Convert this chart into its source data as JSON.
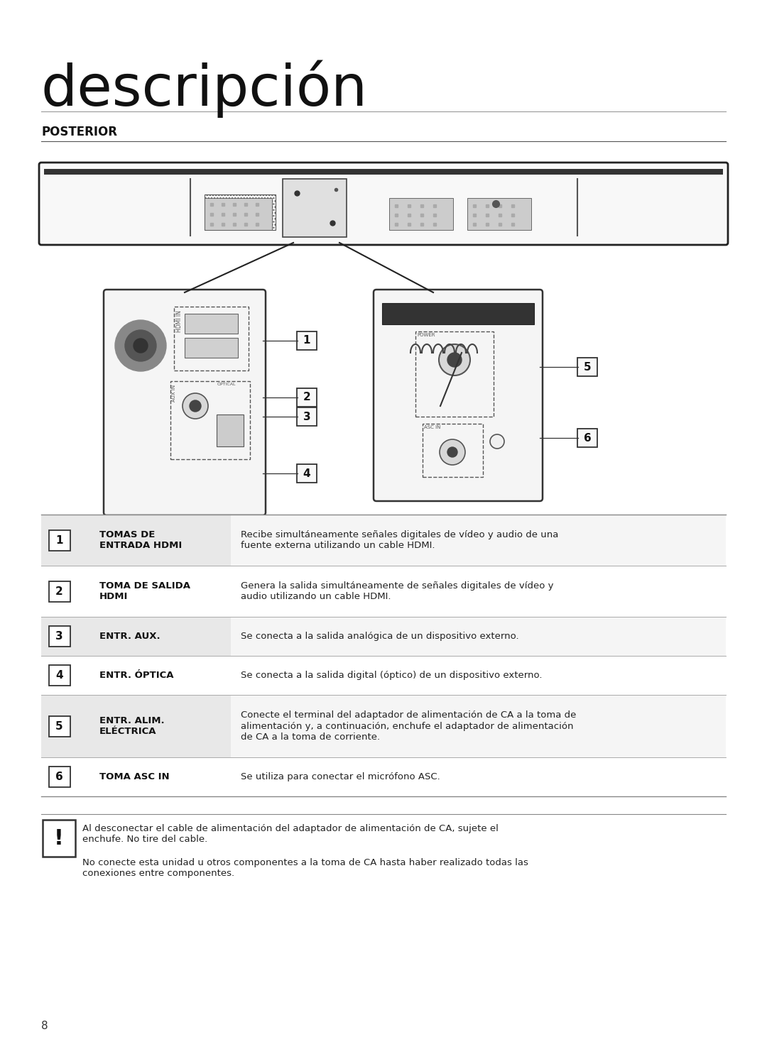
{
  "title": "descripción",
  "section": "POSTERIOR",
  "bg_color": "#ffffff",
  "title_fontsize": 58,
  "section_fontsize": 12,
  "rows": [
    {
      "num": "1",
      "label": "TOMAS DE\nENTRADA HDMI",
      "desc": "Recibe simultáneamente señales digitales de vídeo y audio de una\nfuente externa utilizando un cable HDMI.",
      "bg": "#e8e8e8"
    },
    {
      "num": "2",
      "label": "TOMA DE SALIDA\nHDMI",
      "desc": "Genera la salida simultáneamente de señales digitales de vídeo y\naudio utilizando un cable HDMI.",
      "bg": "#ffffff"
    },
    {
      "num": "3",
      "label": "ENTR. AUX.",
      "desc": "Se conecta a la salida analógica de un dispositivo externo.",
      "bg": "#e8e8e8"
    },
    {
      "num": "4",
      "label": "ENTR. ÓPTICA",
      "desc": "Se conecta a la salida digital (óptico) de un dispositivo externo.",
      "bg": "#ffffff"
    },
    {
      "num": "5",
      "label": "ENTR. ALIM.\nELÉCTRICA",
      "desc": "Conecte el terminal del adaptador de alimentación de CA a la toma de\nalimentación y, a continuación, enchufe el adaptador de alimentación\nde CA a la toma de corriente.",
      "bg": "#e8e8e8"
    },
    {
      "num": "6",
      "label": "TOMA ASC IN",
      "desc": "Se utiliza para conectar el micrófono ASC.",
      "bg": "#ffffff"
    }
  ],
  "warning_text1": "Al desconectar el cable de alimentación del adaptador de alimentación de CA, sujete el\nenchufe. No tire del cable.",
  "warning_text2": "No conecte esta unidad u otros componentes a la toma de CA hasta haber realizado todas las\nconexiones entre componentes.",
  "page_num": "8"
}
